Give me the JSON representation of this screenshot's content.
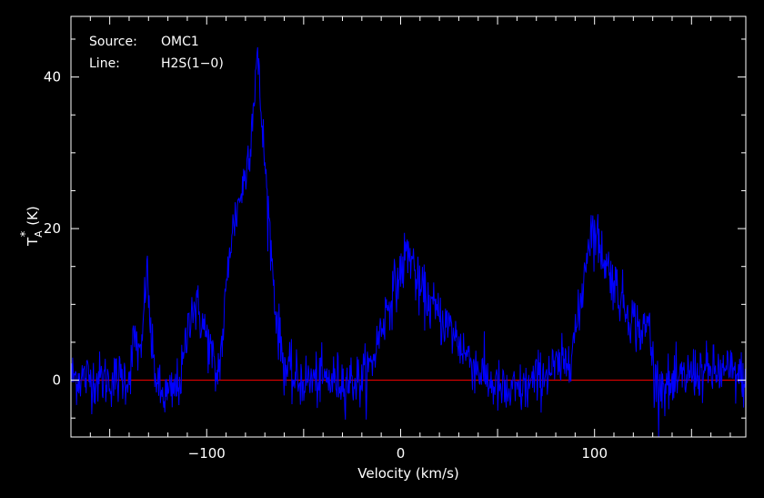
{
  "chart_data": {
    "type": "line",
    "annotations": {
      "source_label": "Source:",
      "source_value": "OMC1",
      "line_label": "Line:",
      "line_value": "H2S(1−0)"
    },
    "xlabel": "Velocity (km/s)",
    "ylabel_main": "T",
    "ylabel_sub": "A",
    "ylabel_sup": "*",
    "ylabel_unit": "(K)",
    "xlim": [
      -170,
      178
    ],
    "ylim": [
      -7.5,
      48
    ],
    "xticks": [
      {
        "value": -100,
        "label": "−100"
      },
      {
        "value": 0,
        "label": "0"
      },
      {
        "value": 100,
        "label": "100"
      }
    ],
    "yticks": [
      {
        "value": 0,
        "label": "0"
      },
      {
        "value": 20,
        "label": "20"
      },
      {
        "value": 40,
        "label": "40"
      }
    ],
    "baseline": 0,
    "series": [
      {
        "color": "#0000ff",
        "profile": [
          [
            -170,
            0.5
          ],
          [
            -150,
            0.0
          ],
          [
            -140,
            0.5
          ],
          [
            -137,
            6
          ],
          [
            -134,
            2
          ],
          [
            -131,
            15
          ],
          [
            -128,
            3
          ],
          [
            -124,
            -2
          ],
          [
            -118,
            -2
          ],
          [
            -113,
            0.5
          ],
          [
            -108,
            10
          ],
          [
            -104,
            9
          ],
          [
            -98,
            4
          ],
          [
            -95,
            0
          ],
          [
            -92,
            5
          ],
          [
            -88,
            18
          ],
          [
            -84,
            23
          ],
          [
            -80,
            27
          ],
          [
            -77,
            33
          ],
          [
            -74,
            43
          ],
          [
            -71,
            32
          ],
          [
            -67,
            18
          ],
          [
            -64,
            8
          ],
          [
            -60,
            2
          ],
          [
            -55,
            0
          ],
          [
            -20,
            0
          ],
          [
            -15,
            2
          ],
          [
            -10,
            7
          ],
          [
            -5,
            11
          ],
          [
            0,
            14
          ],
          [
            3,
            17
          ],
          [
            6,
            16
          ],
          [
            9,
            12
          ],
          [
            13,
            11
          ],
          [
            18,
            9
          ],
          [
            25,
            7
          ],
          [
            30,
            5
          ],
          [
            35,
            3
          ],
          [
            45,
            0
          ],
          [
            55,
            -2
          ],
          [
            65,
            -1
          ],
          [
            75,
            1
          ],
          [
            85,
            2
          ],
          [
            92,
            8
          ],
          [
            95,
            15
          ],
          [
            98,
            20
          ],
          [
            101,
            19
          ],
          [
            105,
            16
          ],
          [
            110,
            13
          ],
          [
            115,
            10
          ],
          [
            120,
            8
          ],
          [
            125,
            6
          ],
          [
            128,
            8
          ],
          [
            131,
            0
          ],
          [
            140,
            -1
          ],
          [
            150,
            1
          ],
          [
            160,
            1
          ],
          [
            170,
            1
          ],
          [
            178,
            0
          ]
        ],
        "noise_rms": 1.8,
        "points": 1200
      }
    ],
    "baseline_color": "#ff0000",
    "grid": false,
    "legend": "none"
  }
}
